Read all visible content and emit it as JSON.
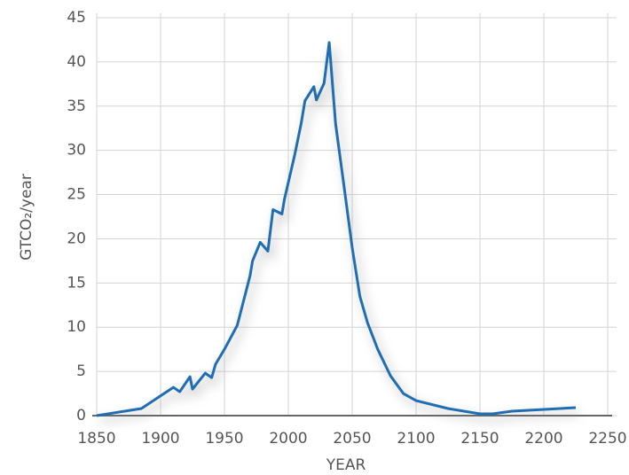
{
  "chart_data": {
    "type": "line",
    "x_label": "YEAR",
    "y_label": "GTCO₂/year",
    "x": [
      1850,
      1885,
      1910,
      1915,
      1923,
      1925,
      1935,
      1940,
      1943,
      1950,
      1960,
      1970,
      1972,
      1978,
      1984,
      1988,
      1995,
      1997,
      2005,
      2010,
      2013,
      2020,
      2022,
      2028,
      2032,
      2037,
      2044,
      2050,
      2056,
      2062,
      2070,
      2080,
      2090,
      2100,
      2125,
      2150,
      2160,
      2175,
      2225
    ],
    "series": [
      {
        "color": "#1f6db3",
        "values": [
          0,
          0.8,
          3.2,
          2.7,
          4.4,
          3.0,
          4.8,
          4.3,
          5.8,
          7.5,
          10.2,
          15.8,
          17.5,
          19.6,
          18.6,
          23.3,
          22.8,
          24.5,
          29.5,
          33,
          35.6,
          37.2,
          35.7,
          37.6,
          42.2,
          33,
          25.5,
          19,
          13.5,
          10.5,
          7.5,
          4.5,
          2.5,
          1.7,
          0.8,
          0.2,
          0.2,
          0.5,
          0.9
        ]
      }
    ],
    "xlim": [
      1850,
      2250
    ],
    "xticks": [
      1850,
      1900,
      1950,
      2000,
      2050,
      2100,
      2150,
      2200,
      2250
    ],
    "ylim": [
      0,
      45
    ],
    "yticks": [
      0,
      5,
      10,
      15,
      20,
      25,
      30,
      35,
      40,
      45
    ],
    "grid": true
  }
}
